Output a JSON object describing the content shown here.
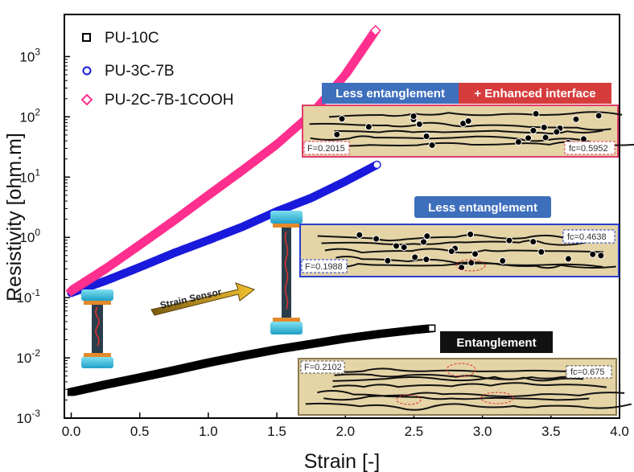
{
  "chart_data": {
    "type": "scatter",
    "xlabel": "Strain [-]",
    "ylabel": "Resistivity [ohm.m]",
    "xlim": [
      -0.05,
      4.0
    ],
    "ylim": [
      0.001,
      5000
    ],
    "yscale": "log",
    "x_ticks": [
      "0.0",
      "0.5",
      "1.0",
      "1.5",
      "2.0",
      "2.5",
      "3.0",
      "3.5",
      "4.0"
    ],
    "y_ticks": [
      {
        "base": "10",
        "exp": "-3"
      },
      {
        "base": "10",
        "exp": "-2"
      },
      {
        "base": "10",
        "exp": "-1"
      },
      {
        "base": "10",
        "exp": "0"
      },
      {
        "base": "10",
        "exp": "1"
      },
      {
        "base": "10",
        "exp": "2"
      },
      {
        "base": "10",
        "exp": "3"
      }
    ],
    "legend_position": "top-left",
    "series": [
      {
        "name": "PU-10C",
        "color": "#000000",
        "marker": "square",
        "x": [
          0.0,
          0.25,
          0.5,
          0.75,
          1.0,
          1.25,
          1.5,
          1.75,
          2.0,
          2.25,
          2.5,
          2.63
        ],
        "y": [
          0.0027,
          0.0036,
          0.0047,
          0.0062,
          0.0083,
          0.0108,
          0.0138,
          0.017,
          0.021,
          0.025,
          0.029,
          0.031
        ]
      },
      {
        "name": "PU-3C-7B",
        "color": "#1a1adc",
        "marker": "circle",
        "x": [
          0.0,
          0.25,
          0.5,
          0.75,
          1.0,
          1.25,
          1.5,
          1.75,
          2.0,
          2.23
        ],
        "y": [
          0.12,
          0.19,
          0.32,
          0.55,
          0.9,
          1.5,
          2.7,
          4.5,
          8.5,
          16
        ]
      },
      {
        "name": "PU-2C-7B-1COOH",
        "color": "#ff2f8f",
        "marker": "diamond",
        "x": [
          0.0,
          0.25,
          0.5,
          0.75,
          1.0,
          1.25,
          1.5,
          1.75,
          2.0,
          2.22
        ],
        "y": [
          0.13,
          0.3,
          0.75,
          1.9,
          5.0,
          13,
          35,
          110,
          500,
          2700
        ]
      }
    ]
  },
  "annotations": {
    "strain_sensor": "Strain Sensor",
    "panel_top": {
      "header_left": "Less entanglement",
      "header_right": "+ Enhanced interface",
      "F": "F=0.2015",
      "fc": "fc=0.5952"
    },
    "panel_mid": {
      "header": "Less entanglement",
      "F": "F=0.1988",
      "fc": "fc=0.4638"
    },
    "panel_bot": {
      "header": "Entanglement",
      "F": "F=0.2102",
      "fc": "fc=0.675"
    }
  },
  "colors": {
    "pu10c": "#000000",
    "pu3c7b": "#1a1adc",
    "pu2c7b1cooh": "#ff2f8f",
    "panel_bg": "#e4d4a6",
    "header_blue": "#3e6fbd",
    "header_red": "#d63c3c",
    "header_black": "#111111"
  }
}
